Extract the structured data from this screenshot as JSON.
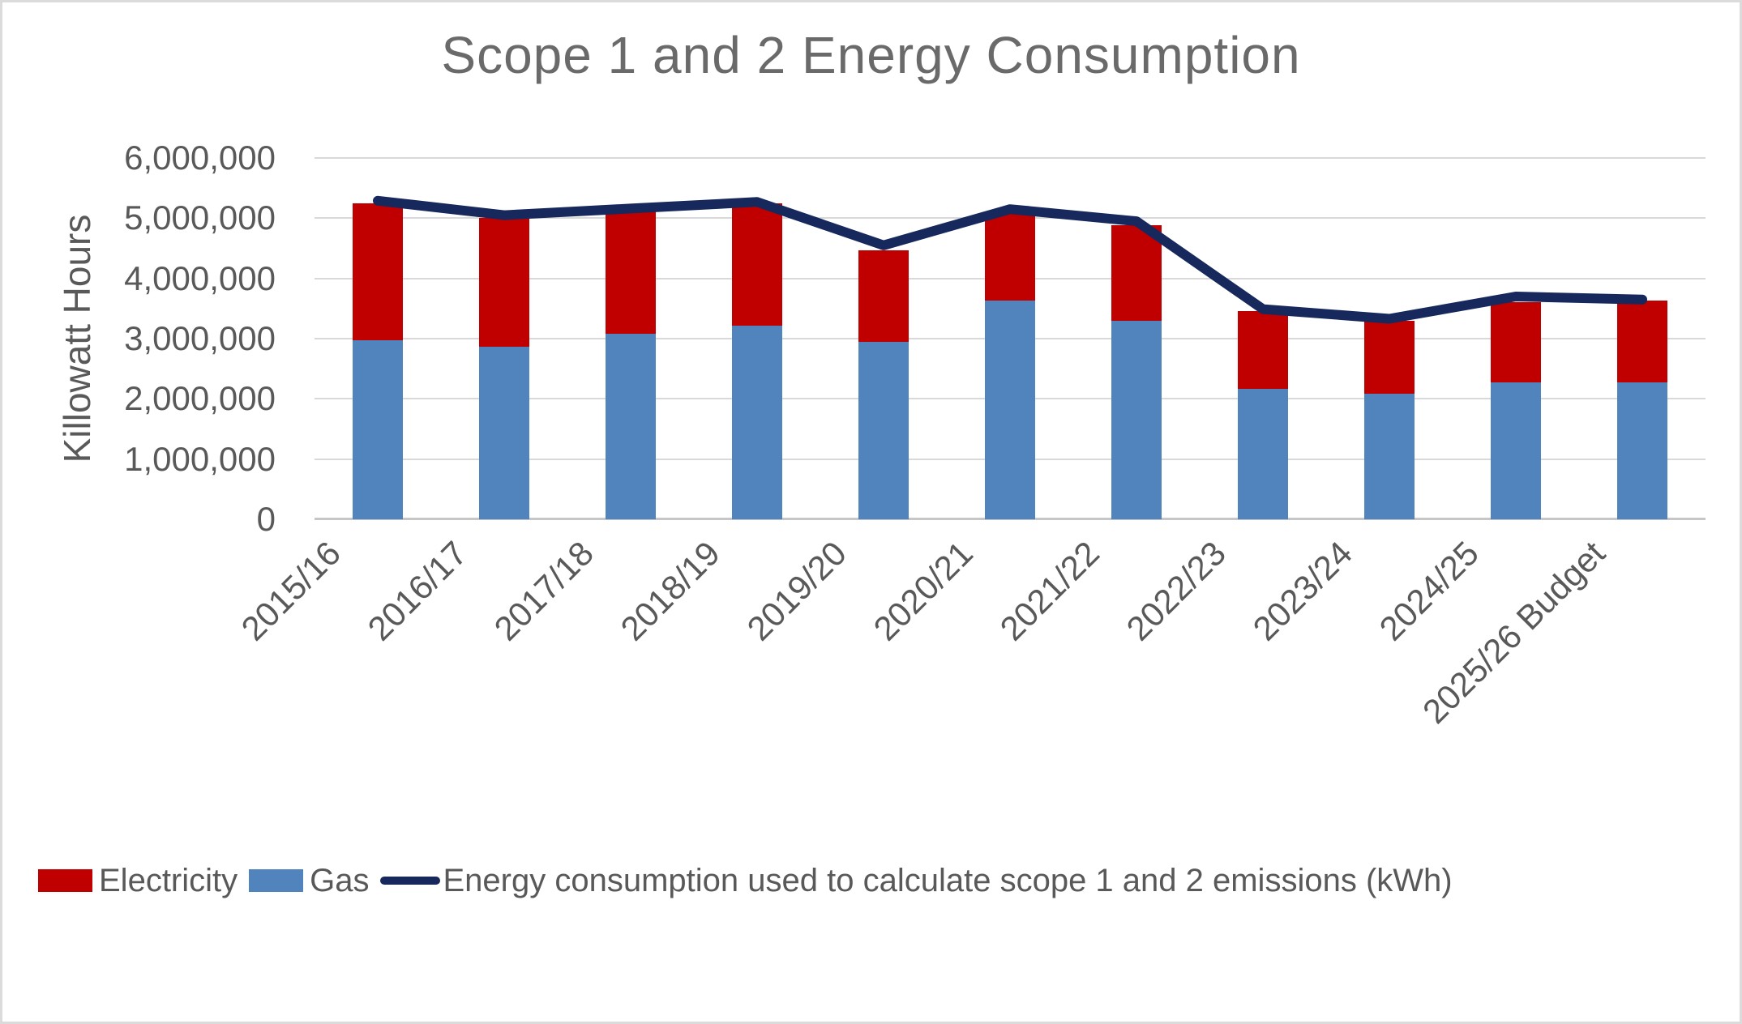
{
  "title": "Scope 1 and 2 Energy Consumption",
  "y_axis": {
    "title": "Killowatt Hours",
    "tick_labels": [
      "6,000,000",
      "5,000,000",
      "4,000,000",
      "3,000,000",
      "2,000,000",
      "1,000,000",
      "0"
    ]
  },
  "legend": {
    "items": [
      {
        "label": "Electricity",
        "marker": "square",
        "color": "#C00000"
      },
      {
        "label": "Gas",
        "marker": "square",
        "color": "#5184BC"
      },
      {
        "label": "Energy consumption used to calculate scope 1 and 2 emissions (kWh)",
        "marker": "line",
        "color": "#16285C"
      }
    ]
  },
  "colors": {
    "electricity": "#C00000",
    "gas": "#5184BC",
    "line": "#16285C",
    "grid": "#D9D9D9",
    "axis": "#C6C6C6",
    "text": "#595959",
    "frame_border": "#DBDBDB",
    "background": "#FFFFFF"
  },
  "chart_data": {
    "type": "bar",
    "subtype": "stacked-bars-with-line-overlay",
    "title": "Scope 1 and 2 Energy Consumption",
    "xlabel": "",
    "ylabel": "Killowatt Hours",
    "ylim": [
      0,
      6000000
    ],
    "ytick_interval": 1000000,
    "grid": true,
    "legend_position": "bottom",
    "categories": [
      "2015/16",
      "2016/17",
      "2017/18",
      "2018/19",
      "2019/20",
      "2020/21",
      "2021/22",
      "2022/23",
      "2023/24",
      "2024/25",
      "2025/26 Budget"
    ],
    "series": [
      {
        "name": "Gas",
        "type": "bar",
        "stack_order": "bottom",
        "color": "#5184BC",
        "values": [
          2970000,
          2860000,
          3080000,
          3220000,
          2940000,
          3630000,
          3290000,
          2170000,
          2080000,
          2270000,
          2280000
        ]
      },
      {
        "name": "Electricity",
        "type": "bar",
        "stack_order": "top",
        "color": "#C00000",
        "values": [
          2280000,
          2150000,
          2030000,
          2030000,
          1530000,
          1470000,
          1600000,
          1290000,
          1210000,
          1340000,
          1350000
        ]
      },
      {
        "name": "Energy consumption used to calculate scope 1 and 2 emissions (kWh)",
        "type": "line",
        "color": "#16285C",
        "values": [
          5290000,
          5050000,
          5160000,
          5270000,
          4550000,
          5150000,
          4950000,
          3490000,
          3330000,
          3700000,
          3650000
        ]
      }
    ]
  }
}
